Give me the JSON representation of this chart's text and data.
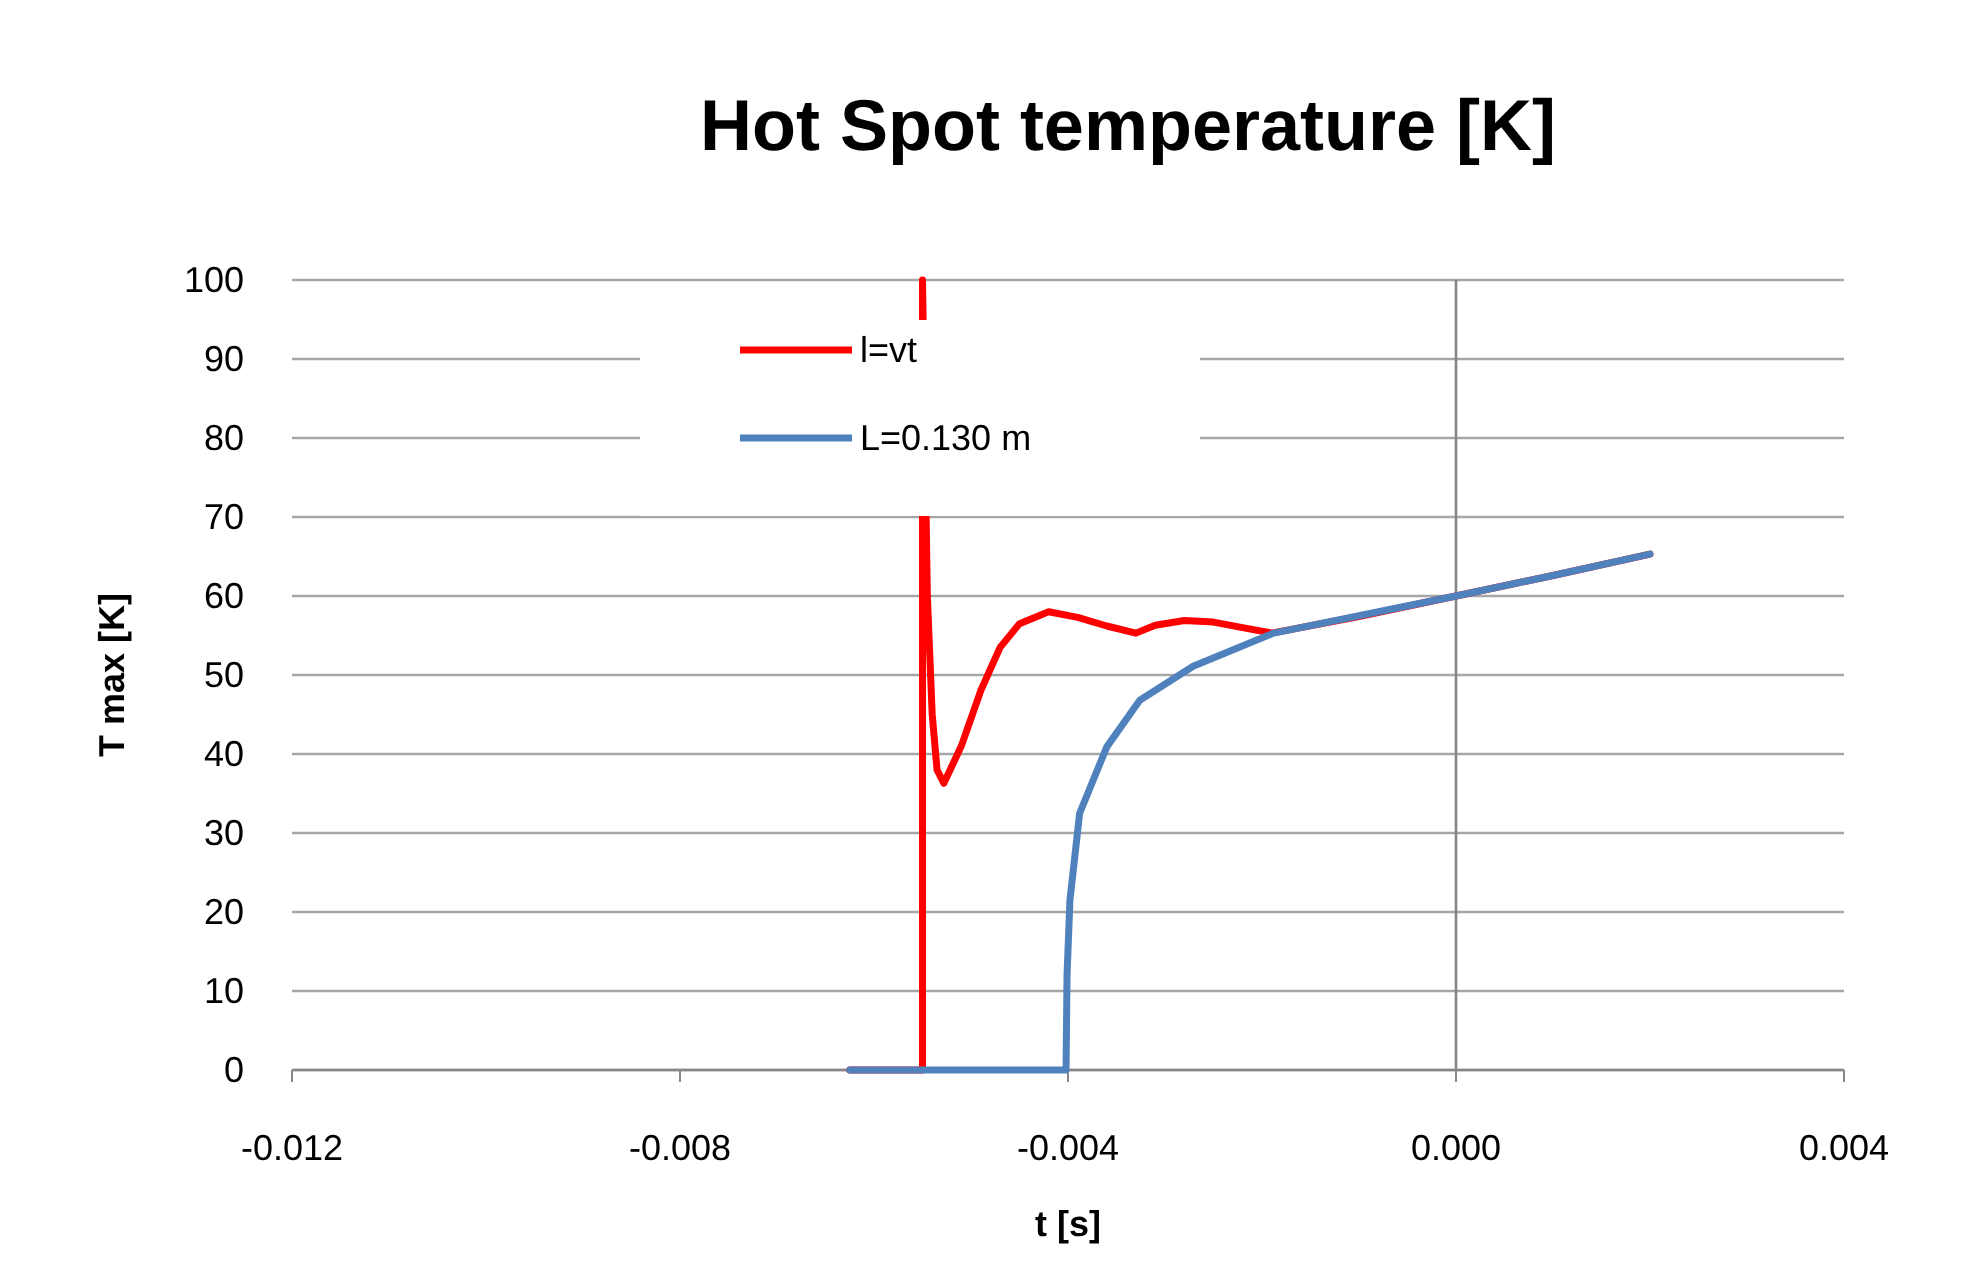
{
  "chart_data": {
    "type": "line",
    "title": "Hot Spot temperature [K]",
    "xlabel": "t [s]",
    "ylabel": "T max [K]",
    "xlim": [
      -0.012,
      0.004
    ],
    "xticks": [
      {
        "value": -0.012,
        "label": "-0.012"
      },
      {
        "value": -0.008,
        "label": "-0.008"
      },
      {
        "value": -0.004,
        "label": "-0.004"
      },
      {
        "value": 0,
        "label": "0.000"
      },
      {
        "value": 0.004,
        "label": "0.004"
      }
    ],
    "ylim": [
      0,
      100
    ],
    "yticks": [
      0,
      10,
      20,
      30,
      40,
      50,
      60,
      70,
      80,
      90,
      100
    ],
    "grid": "y",
    "legend": "top",
    "marker": "none",
    "line_style": "solid",
    "series": [
      {
        "name": "l=vt",
        "color": "#ff0000",
        "x": [
          -0.00625,
          -0.0055,
          -0.0055,
          -0.00545,
          -0.0054,
          -0.00535,
          -0.00528,
          -0.0051,
          -0.0049,
          -0.0047,
          -0.0045,
          -0.0042,
          -0.0039,
          -0.0036,
          -0.0033,
          -0.0031,
          -0.0028,
          -0.0025,
          -0.0022,
          -0.0019,
          -0.001,
          0,
          0.001,
          0.002
        ],
        "values": [
          0,
          0,
          100,
          60,
          45,
          38,
          36.3,
          41,
          48,
          53.5,
          56.5,
          58,
          57.3,
          56.2,
          55.3,
          56.3,
          56.9,
          56.7,
          56,
          55.3,
          57.4,
          60,
          62.6,
          65.3
        ]
      },
      {
        "name": "L=0.130 m",
        "color": "#4f81bd",
        "x": [
          -0.00625,
          -0.00402,
          -0.00401,
          -0.00398,
          -0.00388,
          -0.0036,
          -0.00326,
          -0.00271,
          -0.00188,
          -0.001,
          0,
          0.001,
          0.002
        ],
        "values": [
          0,
          0,
          12,
          21.5,
          32.5,
          40.9,
          46.8,
          51.1,
          55.3,
          57.5,
          60,
          62.6,
          65.3
        ]
      }
    ]
  }
}
